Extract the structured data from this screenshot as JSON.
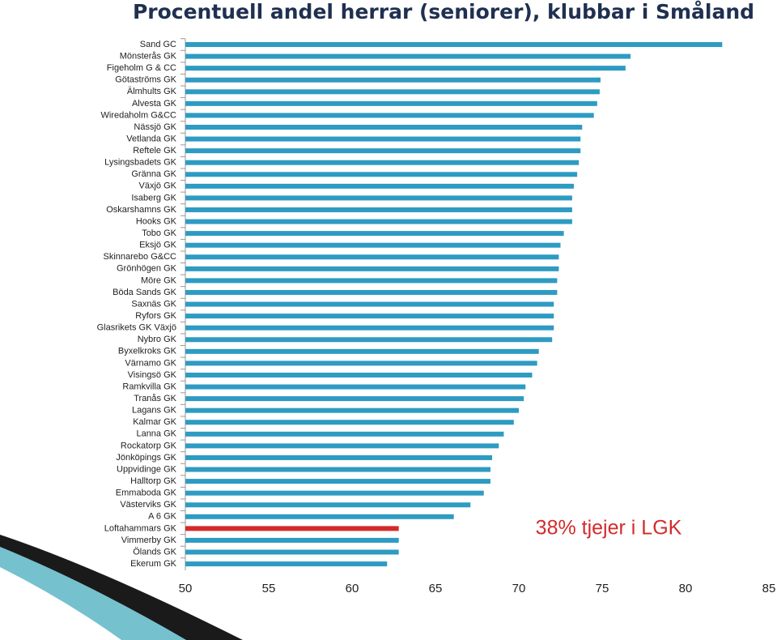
{
  "chart_data": {
    "type": "barh",
    "title": "Procentuell andel herrar (seniorer), klubbar i Småland",
    "annotation": "38% tjejer i LGK",
    "categories": [
      "Sand GC",
      "Mönsterås GK",
      "Figeholm G & CC",
      "Götaströms GK",
      "Älmhults GK",
      "Alvesta GK",
      "Wiredaholm G&CC",
      "Nässjö GK",
      "Vetlanda GK",
      "Reftele GK",
      "Lysingsbadets GK",
      "Gränna GK",
      "Växjö GK",
      "Isaberg GK",
      "Oskarshamns GK",
      "Hooks GK",
      "Tobo GK",
      "Eksjö GK",
      "Skinnarebo G&CC",
      "Grönhögen GK",
      "Möre GK",
      "Böda Sands GK",
      "Saxnäs GK",
      "Ryfors GK",
      "Glasrikets GK Växjö",
      "Nybro GK",
      "Byxelkroks GK",
      "Värnamo GK",
      "Visingsö GK",
      "Ramkvilla GK",
      "Tranås GK",
      "Lagans GK",
      "Kalmar GK",
      "Lanna GK",
      "Rockatorp GK",
      "Jönköpings GK",
      "Uppvidinge GK",
      "Halltorp GK",
      "Emmaboda GK",
      "Västerviks  GK",
      "A 6 GK",
      "Loftahammars GK",
      "Vimmerby GK",
      "Ölands GK",
      "Ekerum GK"
    ],
    "values": [
      82.2,
      76.7,
      76.4,
      74.9,
      74.85,
      74.7,
      74.5,
      73.8,
      73.7,
      73.7,
      73.6,
      73.5,
      73.3,
      73.2,
      73.2,
      73.2,
      72.7,
      72.5,
      72.4,
      72.4,
      72.3,
      72.3,
      72.1,
      72.1,
      72.1,
      72.0,
      71.2,
      71.1,
      70.8,
      70.4,
      70.3,
      70.0,
      69.7,
      69.1,
      68.8,
      68.4,
      68.3,
      68.3,
      67.9,
      67.1,
      66.1,
      62.8,
      62.8,
      62.8,
      62.1
    ],
    "color": "#2e9bc2",
    "highlight_index": 41,
    "highlight_color": "#d42a2a",
    "xlim": [
      50,
      85
    ],
    "xticks": [
      50,
      55,
      60,
      65,
      70,
      75,
      80,
      85
    ]
  }
}
